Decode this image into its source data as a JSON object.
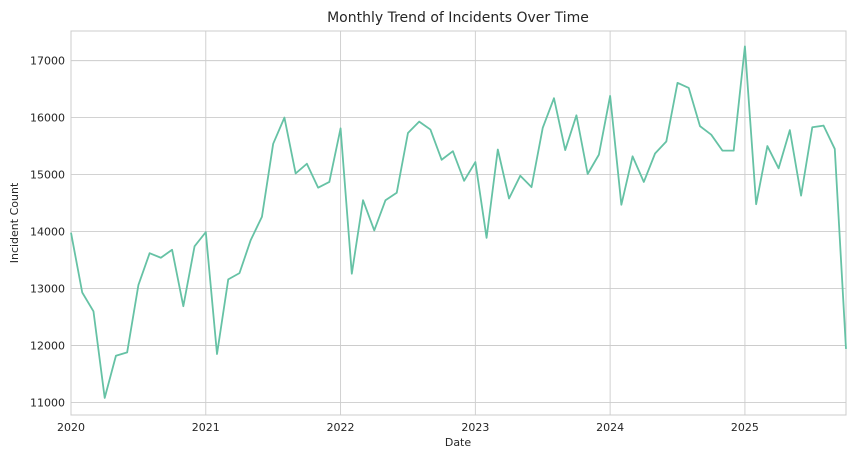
{
  "chart_data": {
    "type": "line",
    "title": "Monthly Trend of Incidents Over Time",
    "xlabel": "Date",
    "ylabel": "Incident Count",
    "grid": true,
    "legend": "none",
    "colors": {
      "line": "#66c2a5",
      "grid": "#cccccc",
      "text": "#262626"
    },
    "x_range": [
      "2020-01",
      "2025-10"
    ],
    "ylim": [
      10780,
      17520
    ],
    "x_ticks": [
      {
        "date": "2020-01",
        "label": "2020"
      },
      {
        "date": "2021-01",
        "label": "2021"
      },
      {
        "date": "2022-01",
        "label": "2022"
      },
      {
        "date": "2023-01",
        "label": "2023"
      },
      {
        "date": "2024-01",
        "label": "2024"
      },
      {
        "date": "2025-01",
        "label": "2025"
      }
    ],
    "y_ticks": [
      {
        "value": 11000,
        "label": "11000"
      },
      {
        "value": 12000,
        "label": "12000"
      },
      {
        "value": 13000,
        "label": "13000"
      },
      {
        "value": 14000,
        "label": "14000"
      },
      {
        "value": 15000,
        "label": "15000"
      },
      {
        "value": 16000,
        "label": "16000"
      },
      {
        "value": 17000,
        "label": "17000"
      }
    ],
    "series": [
      {
        "x": [
          "2020-01",
          "2020-02",
          "2020-03",
          "2020-04",
          "2020-05",
          "2020-06",
          "2020-07",
          "2020-08",
          "2020-09",
          "2020-10",
          "2020-11",
          "2020-12",
          "2021-01",
          "2021-02",
          "2021-03",
          "2021-04",
          "2021-05",
          "2021-06",
          "2021-07",
          "2021-08",
          "2021-09",
          "2021-10",
          "2021-11",
          "2021-12",
          "2022-01",
          "2022-02",
          "2022-03",
          "2022-04",
          "2022-05",
          "2022-06",
          "2022-07",
          "2022-08",
          "2022-09",
          "2022-10",
          "2022-11",
          "2022-12",
          "2023-01",
          "2023-02",
          "2023-03",
          "2023-04",
          "2023-05",
          "2023-06",
          "2023-07",
          "2023-08",
          "2023-09",
          "2023-10",
          "2023-11",
          "2023-12",
          "2024-01",
          "2024-02",
          "2024-03",
          "2024-04",
          "2024-05",
          "2024-06",
          "2024-07",
          "2024-08",
          "2024-09",
          "2024-10",
          "2024-11",
          "2024-12",
          "2025-01",
          "2025-02",
          "2025-03",
          "2025-04",
          "2025-05",
          "2025-06",
          "2025-07",
          "2025-08",
          "2025-09",
          "2025-10"
        ],
        "values": [
          13980,
          12930,
          12600,
          11080,
          11820,
          11880,
          13060,
          13620,
          13540,
          13680,
          12690,
          13740,
          13990,
          11850,
          13160,
          13270,
          13850,
          14260,
          15540,
          16000,
          15020,
          15190,
          14770,
          14870,
          15810,
          13260,
          14550,
          14020,
          14550,
          14680,
          15730,
          15930,
          15790,
          15260,
          15410,
          14890,
          15220,
          13890,
          15440,
          14580,
          14980,
          14780,
          15820,
          16340,
          15430,
          16040,
          15010,
          15350,
          16380,
          14470,
          15320,
          14870,
          15370,
          15580,
          16610,
          16520,
          15850,
          15700,
          15420,
          15420,
          17250,
          14480,
          15500,
          15110,
          15780,
          14630,
          15830,
          15860,
          15450,
          11940
        ]
      }
    ]
  }
}
